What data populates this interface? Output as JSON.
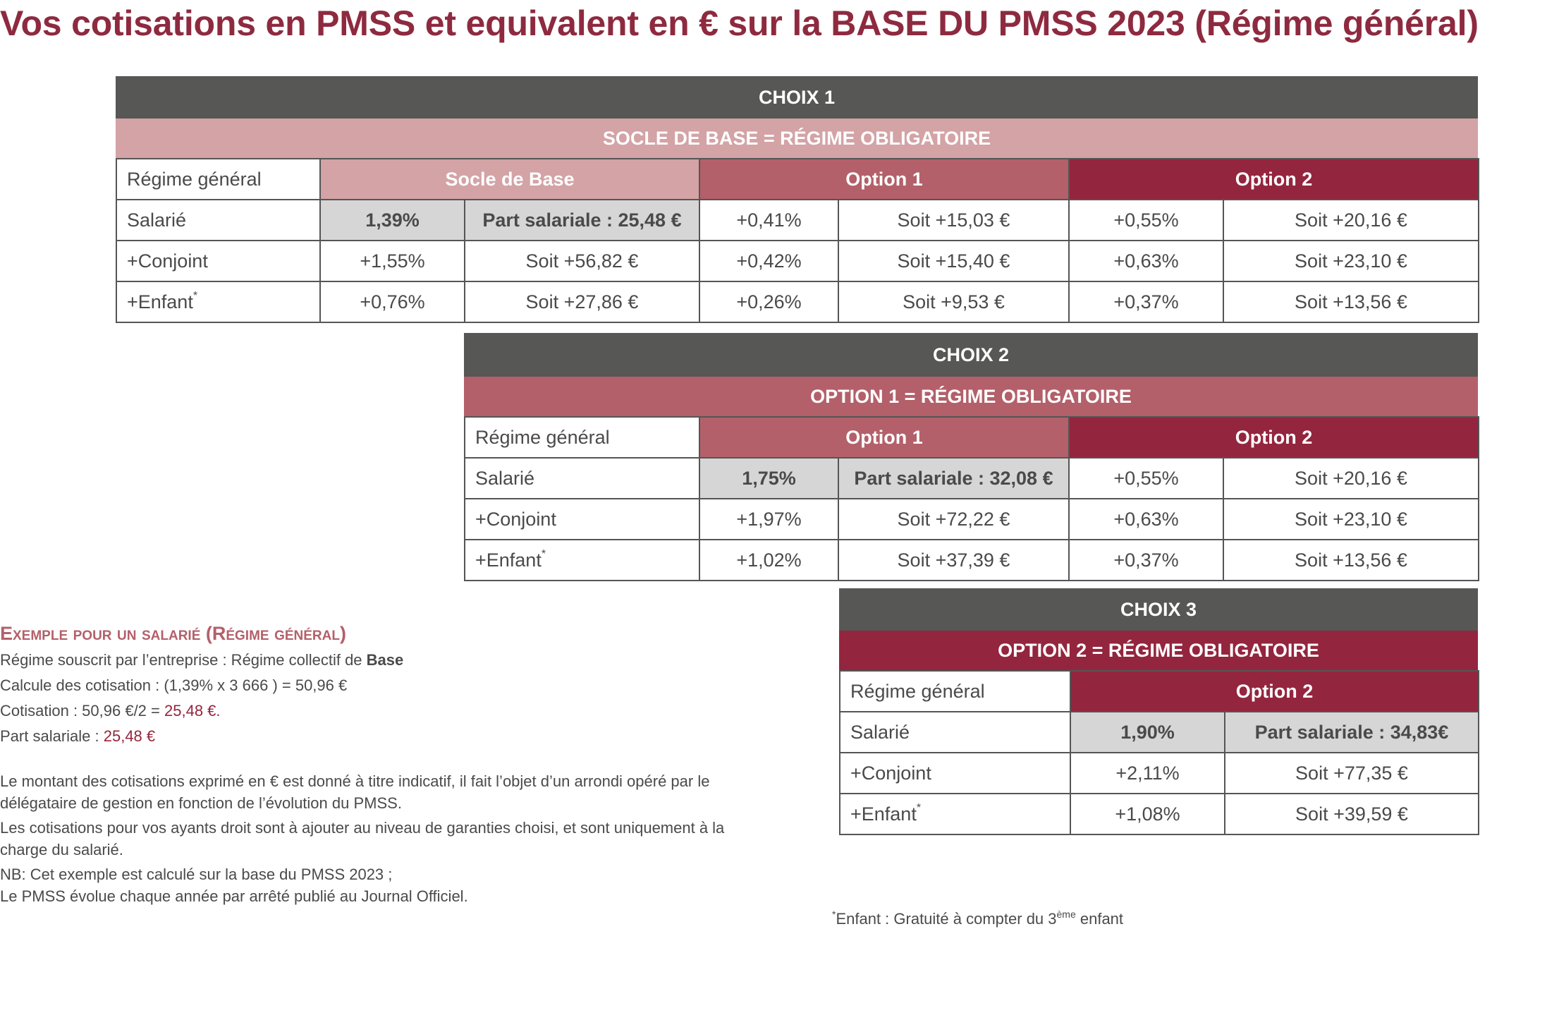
{
  "title": "Vos cotisations en PMSS et equivalent en € sur la BASE DU PMSS 2023 (Régime général)",
  "choix1": {
    "title": "CHOIX 1",
    "subtitle": "SOCLE DE BASE = RÉGIME OBLIGATOIRE",
    "header": [
      "Régime général",
      "Socle de Base",
      "Option 1",
      "Option 2"
    ],
    "rows": [
      {
        "label": "Salarié",
        "sup": "",
        "cells": [
          "1,39%",
          "Part salariale : 25,48 €",
          "+0,41%",
          "Soit +15,03 €",
          "+0,55%",
          "Soit +20,16 €"
        ]
      },
      {
        "label": "+Conjoint",
        "sup": "",
        "cells": [
          "+1,55%",
          "Soit +56,82 €",
          "+0,42%",
          "Soit +15,40 €",
          "+0,63%",
          "Soit +23,10 €"
        ]
      },
      {
        "label": "+Enfant",
        "sup": "*",
        "cells": [
          "+0,76%",
          "Soit +27,86 €",
          "+0,26%",
          "Soit +9,53 €",
          "+0,37%",
          "Soit +13,56 €"
        ]
      }
    ]
  },
  "choix2": {
    "title": "CHOIX 2",
    "subtitle": "OPTION 1 = RÉGIME OBLIGATOIRE",
    "header": [
      "Régime général",
      "Option 1",
      "Option 2"
    ],
    "rows": [
      {
        "label": "Salarié",
        "sup": "",
        "cells": [
          "1,75%",
          "Part salariale : 32,08 €",
          "+0,55%",
          "Soit +20,16 €"
        ]
      },
      {
        "label": "+Conjoint",
        "sup": "",
        "cells": [
          "+1,97%",
          "Soit +72,22 €",
          "+0,63%",
          "Soit +23,10 €"
        ]
      },
      {
        "label": "+Enfant",
        "sup": "*",
        "cells": [
          "+1,02%",
          "Soit +37,39 €",
          "+0,37%",
          "Soit +13,56 €"
        ]
      }
    ]
  },
  "choix3": {
    "title": "CHOIX 3",
    "subtitle": "OPTION 2 = RÉGIME OBLIGATOIRE",
    "header": [
      "Régime général",
      "Option 2"
    ],
    "rows": [
      {
        "label": "Salarié",
        "sup": "",
        "cells": [
          "1,90%",
          "Part salariale : 34,83€"
        ]
      },
      {
        "label": "+Conjoint",
        "sup": "",
        "cells": [
          "+2,11%",
          "Soit +77,35 €"
        ]
      },
      {
        "label": "+Enfant",
        "sup": "*",
        "cells": [
          "+1,08%",
          "Soit +39,59 €"
        ]
      }
    ]
  },
  "example": {
    "title": "Exemple pour un salarié (Régime général)",
    "line1_prefix": "Régime souscrit par l’entreprise : Régime collectif de ",
    "line1_bold": "Base",
    "line2": "Calcule des cotisation : (1,39% x 3 666 ) = 50,96 €",
    "line3_prefix": "Cotisation : 50,96 €/2 = ",
    "line3_red": "25,48 €.",
    "line4_prefix": "Part salariale : ",
    "line4_red": "25,48 €"
  },
  "notes": [
    "Le montant des cotisations exprimé en € est donné à titre indicatif, il fait l’objet d’un arrondi opéré par le délégataire de gestion en fonction de l’évolution du PMSS.",
    "Les cotisations pour vos ayants droit sont à ajouter au niveau de garanties choisi, et sont uniquement à la charge du salarié.",
    "NB: Cet exemple est calculé sur la base du PMSS 2023 ;<br>Le PMSS évolue chaque année par arrêté publié au Journal Officiel."
  ],
  "footnote": {
    "star": "*",
    "text": "Enfant : Gratuité à compter du 3",
    "sup": "ème",
    "tail": " enfant"
  },
  "colors": {
    "title": "#8e2a3f",
    "dark_header": "#575755",
    "pink": "#d3a3a6",
    "rose": "#b3606a",
    "wine": "#94253e",
    "gray_cell": "#d6d6d6"
  }
}
